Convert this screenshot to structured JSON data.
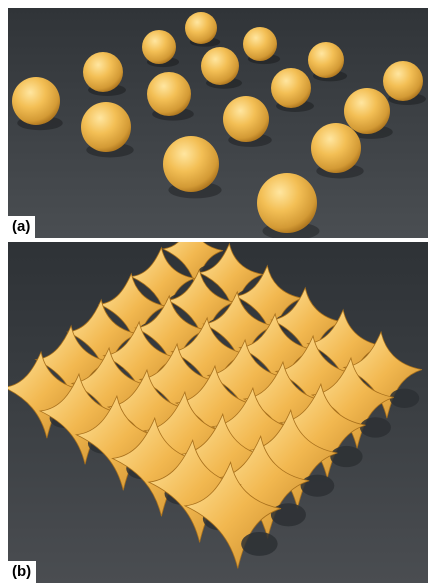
{
  "panels": [
    {
      "label": "(a)",
      "content": "sphere-array"
    },
    {
      "label": "(b)",
      "content": "gyroid-lattice"
    }
  ],
  "colors": {
    "background_dark": "#303438",
    "background_light": "#4a4e52",
    "object_highlight": "#ffe08a",
    "object_base": "#f0b848",
    "object_shadow": "#b87a20"
  }
}
